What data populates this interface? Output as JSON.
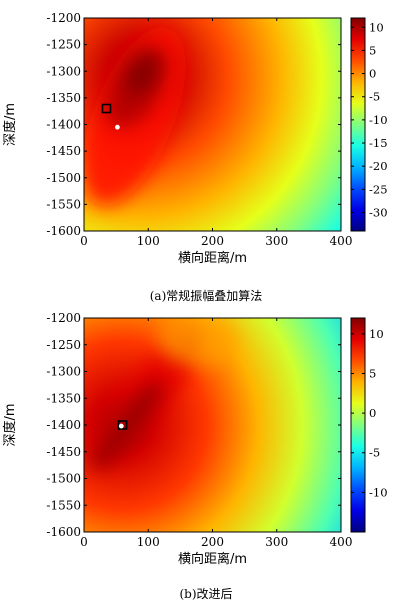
{
  "chart_data": [
    {
      "type": "heatmap",
      "caption": "(a)常规振幅叠加算法",
      "xlabel": "横向距离/m",
      "ylabel": "深度/m",
      "xlim": [
        0,
        400
      ],
      "ylim": [
        -1600,
        -1200
      ],
      "xticks": [
        0,
        100,
        200,
        300,
        400
      ],
      "yticks": [
        -1200,
        -1250,
        -1300,
        -1350,
        -1400,
        -1450,
        -1500,
        -1550,
        -1600
      ],
      "colorbar": {
        "min": -34,
        "max": 12,
        "ticks": [
          10,
          5,
          0,
          -5,
          -10,
          -15,
          -20,
          -25,
          -30
        ]
      },
      "peak": {
        "x": 90,
        "y": -1310,
        "value": 12
      },
      "markers": [
        {
          "shape": "square",
          "x": 35,
          "y": -1370
        },
        {
          "shape": "circle",
          "x": 52,
          "y": -1405
        }
      ]
    },
    {
      "type": "heatmap",
      "caption": "(b)改进后",
      "xlabel": "横向距离/m",
      "ylabel": "深度/m",
      "xlim": [
        0,
        400
      ],
      "ylim": [
        -1600,
        -1200
      ],
      "xticks": [
        0,
        100,
        200,
        300,
        400
      ],
      "yticks": [
        -1200,
        -1250,
        -1300,
        -1350,
        -1400,
        -1450,
        -1500,
        -1550,
        -1600
      ],
      "colorbar": {
        "min": -15,
        "max": 12,
        "ticks": [
          10,
          5,
          0,
          -5,
          -10
        ]
      },
      "peak": {
        "x": 60,
        "y": -1400,
        "value": 12
      },
      "markers": [
        {
          "shape": "square",
          "x": 60,
          "y": -1400
        },
        {
          "shape": "circle",
          "x": 58,
          "y": -1402
        }
      ]
    }
  ]
}
